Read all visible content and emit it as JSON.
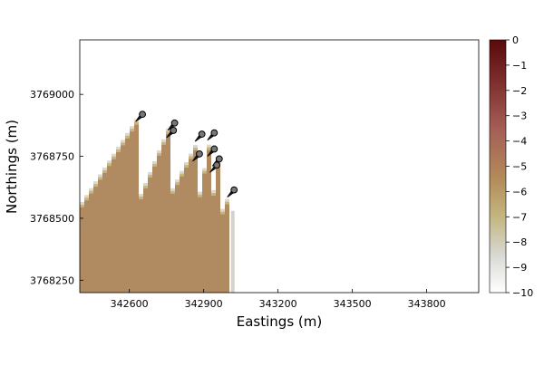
{
  "chart_data": {
    "type": "heatmap",
    "xlabel": "Eastings (m)",
    "ylabel": "Northings (m)",
    "xlim": [
      342400,
      344010
    ],
    "ylim": [
      3768200,
      3769220
    ],
    "x_ticks": [
      342600,
      342900,
      343200,
      343500,
      343800
    ],
    "x_tick_labels": [
      "342600",
      "342900",
      "343200",
      "343500",
      "343800"
    ],
    "y_ticks": [
      3768250,
      3768500,
      3768750,
      3769000
    ],
    "y_tick_labels": [
      "3768250",
      "3768500",
      "3768750",
      "3769000"
    ],
    "colorbar": {
      "range": [
        -10,
        0
      ],
      "ticks": [
        0,
        -1,
        -2,
        -3,
        -4,
        -5,
        -6,
        -7,
        -8,
        -9,
        -10
      ],
      "tick_labels": [
        "0",
        "−1",
        "−2",
        "−3",
        "−4",
        "−5",
        "−6",
        "−7",
        "−8",
        "−9",
        "−10"
      ],
      "colors": [
        "#ffffff",
        "#d8d8d3",
        "#c4b67f",
        "#b38b5a",
        "#a45e55",
        "#7b2a2a",
        "#5a0a0a"
      ]
    },
    "plume_field_color": "#b08a60",
    "markers": [
      {
        "x": 342640,
        "y": 3768905
      },
      {
        "x": 342770,
        "y": 3768870
      },
      {
        "x": 342765,
        "y": 3768840
      },
      {
        "x": 342880,
        "y": 3768825
      },
      {
        "x": 342930,
        "y": 3768830
      },
      {
        "x": 342930,
        "y": 3768765
      },
      {
        "x": 342870,
        "y": 3768745
      },
      {
        "x": 342950,
        "y": 3768725
      },
      {
        "x": 342940,
        "y": 3768700
      },
      {
        "x": 343010,
        "y": 3768600
      }
    ],
    "plume_ridges": [
      {
        "x0": 342400,
        "y0": 3768530,
        "x1": 342640,
        "y1": 3768895
      },
      {
        "x0": 342640,
        "y0": 3768560,
        "x1": 342765,
        "y1": 3768860
      },
      {
        "x0": 342765,
        "y0": 3768580,
        "x1": 342880,
        "y1": 3768800
      },
      {
        "x0": 342880,
        "y0": 3768560,
        "x1": 342930,
        "y1": 3768820
      },
      {
        "x0": 342930,
        "y0": 3768520,
        "x1": 342960,
        "y1": 3768740
      },
      {
        "x0": 342960,
        "y0": 3768480,
        "x1": 343010,
        "y1": 3768590
      }
    ]
  }
}
